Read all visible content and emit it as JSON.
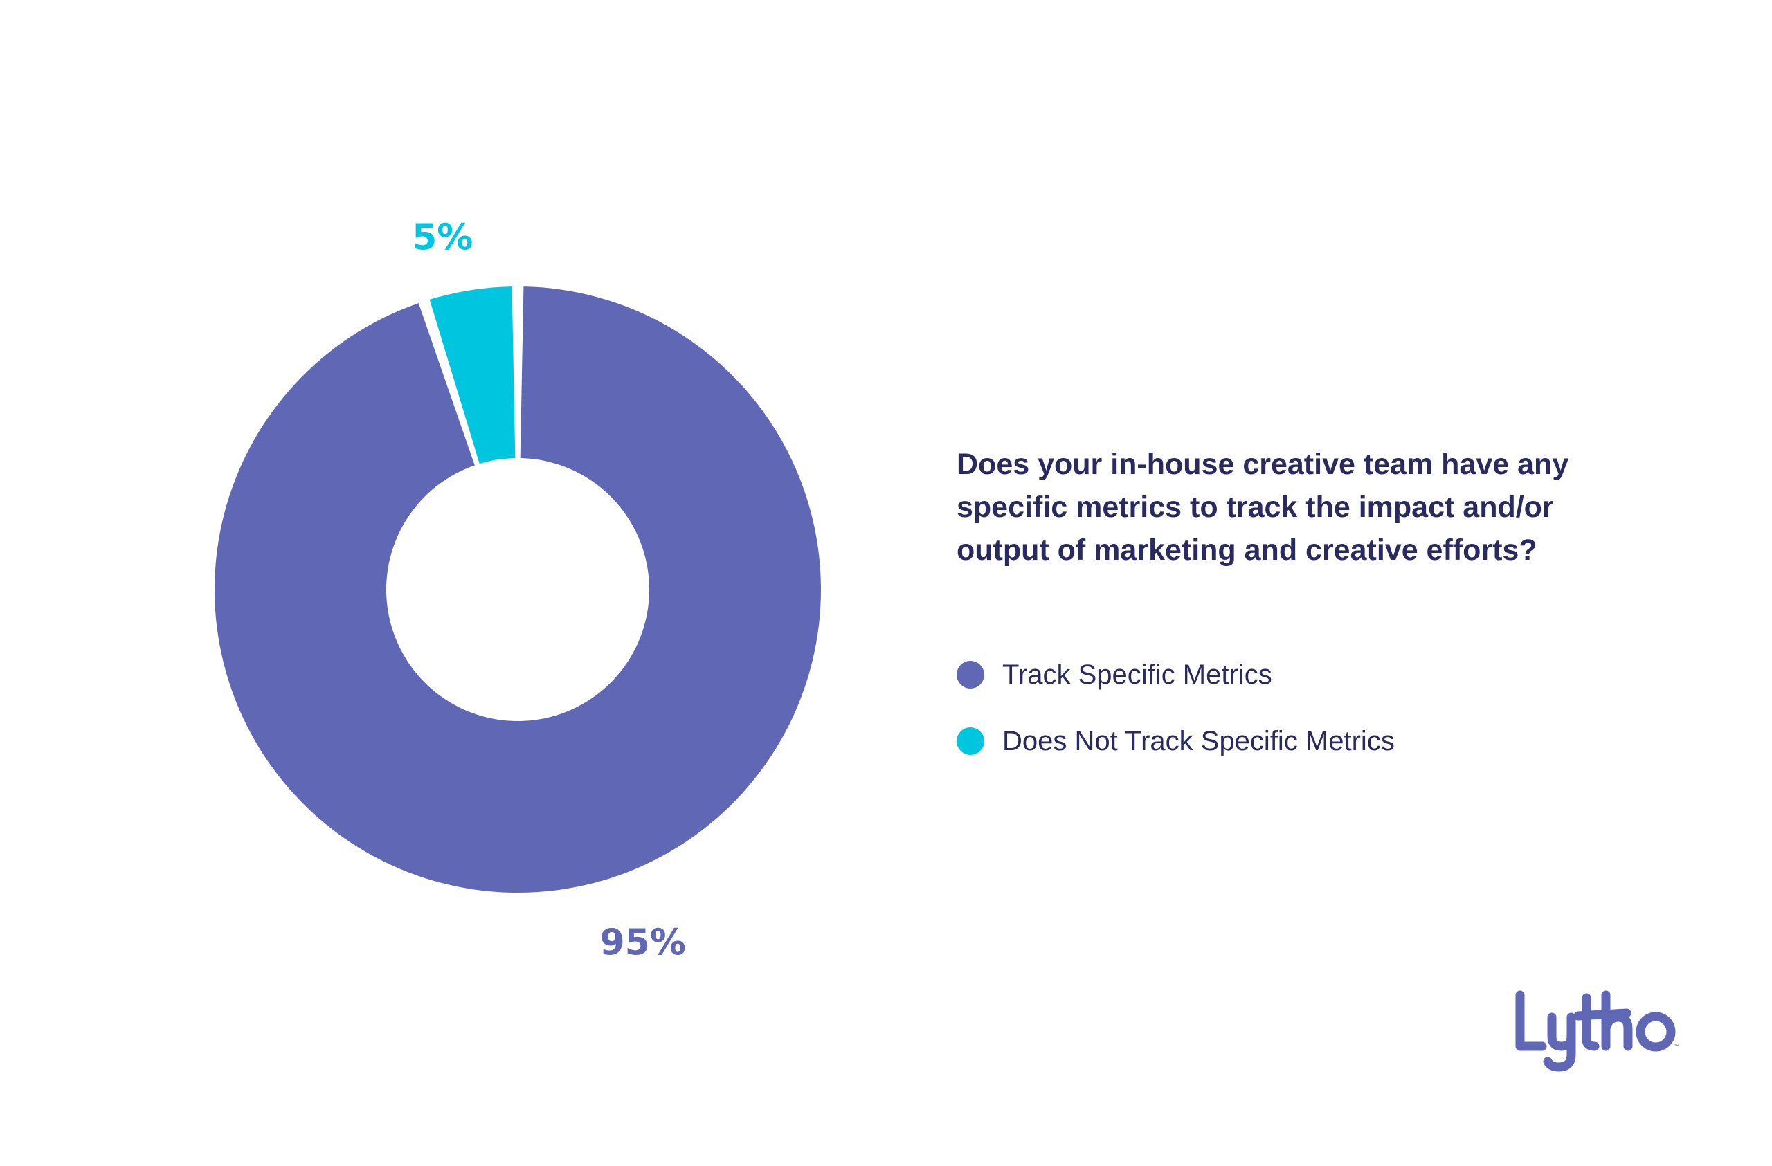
{
  "chart_data": {
    "type": "pie",
    "variant": "donut",
    "title": "Does your in-house creative team have any specific metrics to track the impact and/or output of marketing and creative efforts?",
    "slices": [
      {
        "name": "Track Specific Metrics",
        "value": 95,
        "label": "95%",
        "color": "#6068b5"
      },
      {
        "name": "Does Not Track Specific Metrics",
        "value": 5,
        "label": "5%",
        "color": "#00c5de"
      }
    ],
    "legend_position": "right"
  },
  "brand": {
    "name": "Lytho",
    "color": "#6068b5"
  }
}
